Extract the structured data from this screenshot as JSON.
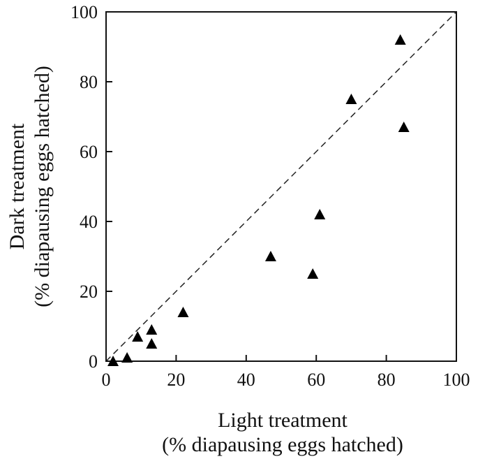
{
  "chart_data": {
    "type": "scatter",
    "xlabel": "Light treatment",
    "xlabel_sub": "(% diapausing eggs hatched)",
    "ylabel": "Dark treatment",
    "ylabel_sub": "(% diapausing eggs hatched)",
    "xlim": [
      0,
      100
    ],
    "ylim": [
      0,
      100
    ],
    "xticks": [
      "0",
      "20",
      "40",
      "60",
      "80",
      "100"
    ],
    "yticks": [
      "0",
      "20",
      "40",
      "60",
      "80",
      "100"
    ],
    "grid": false,
    "reference_line": "1:1 dashed diagonal",
    "marker": "filled-triangle",
    "points": [
      {
        "x": 2,
        "y": 0
      },
      {
        "x": 6,
        "y": 1
      },
      {
        "x": 9,
        "y": 7
      },
      {
        "x": 13,
        "y": 5
      },
      {
        "x": 13,
        "y": 9
      },
      {
        "x": 22,
        "y": 14
      },
      {
        "x": 47,
        "y": 30
      },
      {
        "x": 59,
        "y": 25
      },
      {
        "x": 61,
        "y": 42
      },
      {
        "x": 70,
        "y": 75
      },
      {
        "x": 84,
        "y": 92
      },
      {
        "x": 85,
        "y": 67
      }
    ]
  }
}
